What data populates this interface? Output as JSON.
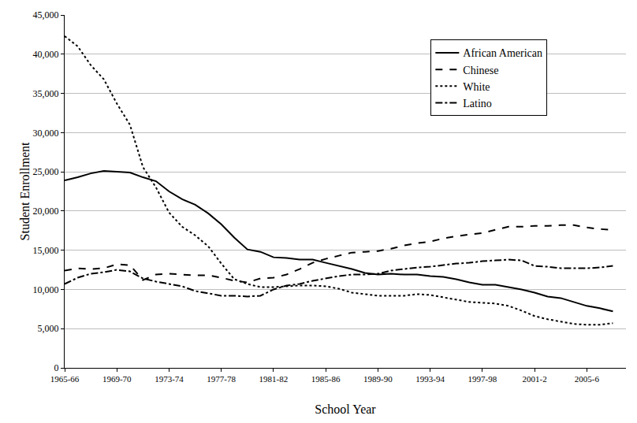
{
  "chart_data": {
    "type": "line",
    "x_label": "School Year",
    "y_label": "Student Enrollment",
    "x": [
      1965,
      1966,
      1967,
      1968,
      1969,
      1970,
      1971,
      1972,
      1973,
      1974,
      1975,
      1976,
      1977,
      1978,
      1979,
      1980,
      1981,
      1982,
      1983,
      1984,
      1985,
      1986,
      1987,
      1988,
      1989,
      1990,
      1991,
      1992,
      1993,
      1994,
      1995,
      1996,
      1997,
      1998,
      1999,
      2000,
      2001,
      2002,
      2003,
      2004,
      2005,
      2006,
      2007
    ],
    "series": [
      {
        "name": "African American",
        "color": "#000000",
        "line_style": "solid",
        "values": [
          23900,
          24300,
          24800,
          25100,
          25000,
          24900,
          24300,
          23800,
          22500,
          21500,
          20800,
          19700,
          18300,
          16600,
          15100,
          14800,
          14100,
          14000,
          13800,
          13800,
          13400,
          13000,
          12600,
          12100,
          11900,
          12000,
          11900,
          11900,
          11700,
          11600,
          11300,
          10900,
          10600,
          10600,
          10300,
          10000,
          9600,
          9100,
          8900,
          8400,
          7900,
          7600,
          7200
        ]
      },
      {
        "name": "Chinese",
        "color": "#000000",
        "line_style": "dash",
        "values": [
          12400,
          12700,
          12600,
          12700,
          13200,
          13100,
          11200,
          11900,
          12000,
          11900,
          11800,
          11800,
          11500,
          11100,
          10900,
          11400,
          11500,
          11900,
          12600,
          13400,
          13900,
          14300,
          14700,
          14800,
          14900,
          15200,
          15600,
          15900,
          16100,
          16500,
          16800,
          17000,
          17200,
          17600,
          18000,
          18000,
          18100,
          18100,
          18200,
          18200,
          17900,
          17700,
          17600
        ]
      },
      {
        "name": "White",
        "color": "#000000",
        "line_style": "dot",
        "values": [
          42300,
          41000,
          38600,
          36800,
          33700,
          31000,
          25600,
          23000,
          19800,
          18000,
          16900,
          15500,
          13300,
          11300,
          10700,
          10300,
          10300,
          10400,
          10500,
          10500,
          10400,
          10100,
          9600,
          9400,
          9200,
          9200,
          9200,
          9400,
          9300,
          9000,
          8700,
          8400,
          8300,
          8200,
          7900,
          7300,
          6600,
          6200,
          5900,
          5600,
          5500,
          5500,
          5700
        ]
      },
      {
        "name": "Latino",
        "color": "#000000",
        "line_style": "dashdot",
        "values": [
          10700,
          11500,
          12000,
          12200,
          12500,
          12300,
          11400,
          11000,
          10700,
          10400,
          9800,
          9500,
          9200,
          9200,
          9100,
          9200,
          10000,
          10500,
          10700,
          11100,
          11400,
          11700,
          11900,
          11900,
          12000,
          12400,
          12600,
          12800,
          12900,
          13100,
          13300,
          13400,
          13600,
          13700,
          13800,
          13700,
          13000,
          12900,
          12700,
          12700,
          12700,
          12800,
          13000
        ]
      }
    ],
    "xlim": [
      1965,
      2008
    ],
    "xticks": [
      {
        "value": 1965,
        "label": "1965-66"
      },
      {
        "value": 1969,
        "label": "1969-70"
      },
      {
        "value": 1973,
        "label": "1973-74"
      },
      {
        "value": 1977,
        "label": "1977-78"
      },
      {
        "value": 1981,
        "label": "1981-82"
      },
      {
        "value": 1985,
        "label": "1985-86"
      },
      {
        "value": 1989,
        "label": "1989-90"
      },
      {
        "value": 1993,
        "label": "1993-94"
      },
      {
        "value": 1997,
        "label": "1997-98"
      },
      {
        "value": 2001,
        "label": "2001-2"
      },
      {
        "value": 2005,
        "label": "2005-6"
      }
    ],
    "ylim": [
      0,
      45000
    ],
    "yticks": [
      0,
      {
        "value": 5000,
        "label": "5,000"
      },
      {
        "value": 10000,
        "label": "10,000"
      },
      {
        "value": 15000,
        "label": "15,000"
      },
      {
        "value": 20000,
        "label": "20,000"
      },
      {
        "value": 25000,
        "label": "25,000"
      },
      {
        "value": 30000,
        "label": "30,000"
      },
      {
        "value": 35000,
        "label": "35,000"
      },
      {
        "value": 40000,
        "label": "40,000"
      },
      {
        "value": 45000,
        "label": "45,000"
      }
    ],
    "grid": true,
    "legend": "upper right"
  }
}
